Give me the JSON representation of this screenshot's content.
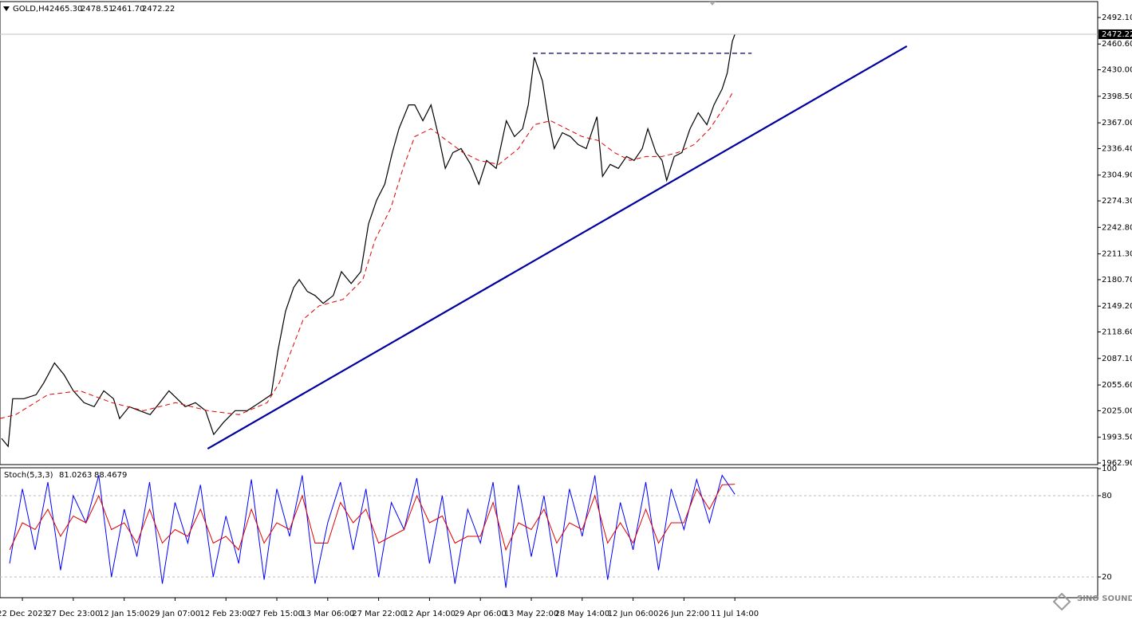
{
  "chart_data": [
    {
      "type": "line",
      "symbol": "GOLD,H4",
      "ohlc": [
        "2465.30",
        "2478.51",
        "2461.70",
        "2472.22"
      ],
      "xlim": [
        -0.44,
        21.13
      ],
      "ylim": [
        1961,
        2511
      ],
      "yticks": [
        {
          "value": 2492.1,
          "label": "2492.10"
        },
        {
          "value": 2460.6,
          "label": "2460.60"
        },
        {
          "value": 2430,
          "label": "2430.00"
        },
        {
          "value": 2398.5,
          "label": "2398.50"
        },
        {
          "value": 2367,
          "label": "2367.00"
        },
        {
          "value": 2336.4,
          "label": "2336.40"
        },
        {
          "value": 2304.9,
          "label": "2304.90"
        },
        {
          "value": 2274.3,
          "label": "2274.30"
        },
        {
          "value": 2242.8,
          "label": "2242.80"
        },
        {
          "value": 2211.3,
          "label": "2211.30"
        },
        {
          "value": 2180.7,
          "label": "2180.70"
        },
        {
          "value": 2149.2,
          "label": "2149.20"
        },
        {
          "value": 2118.6,
          "label": "2118.60"
        },
        {
          "value": 2087.1,
          "label": "2087.10"
        },
        {
          "value": 2055.6,
          "label": "2055.60"
        },
        {
          "value": 2025,
          "label": "2025.00"
        },
        {
          "value": 1993.5,
          "label": "1993.50"
        },
        {
          "value": 1962.9,
          "label": "1962.90"
        }
      ],
      "xticks": [
        {
          "value": 0,
          "label": "22 Dec 2023"
        },
        {
          "value": 1,
          "label": "27 Dec 23:00"
        },
        {
          "value": 2,
          "label": "12 Jan 15:00"
        },
        {
          "value": 3,
          "label": "29 Jan 07:00"
        },
        {
          "value": 4,
          "label": "12 Feb 23:00"
        },
        {
          "value": 5,
          "label": "27 Feb 15:00"
        },
        {
          "value": 6,
          "label": "13 Mar 06:00"
        },
        {
          "value": 7,
          "label": "27 Mar 22:00"
        },
        {
          "value": 8,
          "label": "12 Apr 14:00"
        },
        {
          "value": 9,
          "label": "29 Apr 06:00"
        },
        {
          "value": 10,
          "label": "13 May 22:00"
        },
        {
          "value": 11,
          "label": "28 May 14:00"
        },
        {
          "value": 12,
          "label": "12 Jun 06:00"
        },
        {
          "value": 13,
          "label": "26 Jun 22:00"
        },
        {
          "value": 14,
          "label": "11 Jul 14:00"
        }
      ],
      "series": [
        {
          "color": "#000000",
          "style": "solid",
          "x": [
            -0.41,
            -0.28,
            -0.19,
            0.03,
            0.27,
            0.42,
            0.63,
            0.82,
            1.0,
            1.21,
            1.41,
            1.6,
            1.79,
            1.91,
            2.1,
            2.3,
            2.51,
            2.7,
            2.88,
            3.04,
            3.2,
            3.4,
            3.6,
            3.76,
            3.95,
            4.18,
            4.42,
            4.66,
            4.89,
            5.02,
            5.17,
            5.33,
            5.44,
            5.6,
            5.75,
            5.91,
            6.11,
            6.27,
            6.46,
            6.65,
            6.8,
            6.96,
            7.12,
            7.27,
            7.4,
            7.59,
            7.71,
            7.87,
            8.03,
            8.18,
            8.31,
            8.46,
            8.62,
            8.81,
            8.97,
            9.12,
            9.31,
            9.51,
            9.67,
            9.83,
            9.94,
            10.06,
            10.22,
            10.34,
            10.45,
            10.61,
            10.77,
            10.92,
            11.08,
            11.29,
            11.4,
            11.55,
            11.71,
            11.87,
            12.02,
            12.18,
            12.29,
            12.45,
            12.57,
            12.66,
            12.81,
            12.96,
            13.12,
            13.28,
            13.45,
            13.59,
            13.75,
            13.85,
            13.95,
            14.0
          ],
          "values": [
            1992.1,
            1982.7,
            2039.3,
            2039.3,
            2044.0,
            2058.1,
            2081.7,
            2067.6,
            2048.7,
            2034.6,
            2029.8,
            2048.7,
            2039.3,
            2015.7,
            2029.8,
            2025.1,
            2020.4,
            2034.6,
            2048.7,
            2039.3,
            2029.8,
            2034.6,
            2025.1,
            1996.8,
            2011.0,
            2025.1,
            2025.1,
            2034.6,
            2044.0,
            2095.9,
            2143.0,
            2171.3,
            2180.8,
            2166.6,
            2161.9,
            2152.5,
            2161.9,
            2190.2,
            2176.1,
            2190.2,
            2246.8,
            2275.1,
            2294.0,
            2331.7,
            2360.0,
            2388.3,
            2388.3,
            2369.5,
            2388.3,
            2350.6,
            2312.9,
            2331.7,
            2336.4,
            2317.6,
            2294.0,
            2322.3,
            2312.9,
            2369.5,
            2350.6,
            2360.0,
            2388.3,
            2444.9,
            2416.6,
            2369.5,
            2336.4,
            2355.3,
            2350.6,
            2341.2,
            2336.4,
            2374.2,
            2303.4,
            2317.6,
            2312.9,
            2327.0,
            2322.3,
            2336.4,
            2360.0,
            2331.7,
            2322.3,
            2298.7,
            2327.0,
            2331.7,
            2360.0,
            2378.9,
            2364.7,
            2388.3,
            2407.2,
            2426.1,
            2463.8,
            2472.22
          ]
        },
        {
          "color": "#e00000",
          "style": "dashed",
          "x": [
            -0.44,
            -0.13,
            0.5,
            1.13,
            1.76,
            2.38,
            3.01,
            3.64,
            4.26,
            4.81,
            5.05,
            5.28,
            5.52,
            5.83,
            6.3,
            6.69,
            6.93,
            7.24,
            7.48,
            7.71,
            8.03,
            8.34,
            8.66,
            8.97,
            9.36,
            9.75,
            10.06,
            10.38,
            10.69,
            11.0,
            11.32,
            11.63,
            11.94,
            12.26,
            12.57,
            12.88,
            13.2,
            13.51,
            13.82,
            13.95
          ],
          "values": [
            2015.7,
            2020.4,
            2044.0,
            2048.7,
            2034.6,
            2025.1,
            2034.6,
            2025.1,
            2020.4,
            2034.6,
            2058.1,
            2095.9,
            2133.6,
            2149.6,
            2157.2,
            2180.8,
            2227.9,
            2265.7,
            2312.9,
            2350.6,
            2360.0,
            2345.9,
            2331.7,
            2322.3,
            2317.6,
            2336.4,
            2364.7,
            2369.5,
            2360.0,
            2350.6,
            2345.9,
            2331.7,
            2322.3,
            2327.0,
            2327.0,
            2331.7,
            2341.2,
            2360.0,
            2388.3,
            2402.5
          ]
        }
      ],
      "lines": [
        {
          "color": "#0000a0",
          "style": "solid",
          "x": [
            3.64,
            17.38
          ],
          "values": [
            1979.8,
            2458.1
          ]
        },
        {
          "color": "#000050",
          "style": "dashed",
          "x": [
            10.03,
            14.33
          ],
          "values": [
            2449.6,
            2449.6
          ]
        }
      ]
    },
    {
      "type": "line",
      "title": "Stoch(5,3,3)",
      "xlim": [
        -0.44,
        21.13
      ],
      "ylim": [
        4.7,
        100.6
      ],
      "yticks": [
        100,
        80,
        20
      ],
      "levels": [
        80,
        20
      ],
      "series": [
        {
          "color": "#0000ff",
          "style": "solid",
          "x": [
            -0.25,
            0,
            0.25,
            0.5,
            0.75,
            1,
            1.25,
            1.5,
            1.75,
            2,
            2.25,
            2.5,
            2.75,
            3,
            3.25,
            3.5,
            3.75,
            4,
            4.25,
            4.5,
            4.75,
            5,
            5.25,
            5.5,
            5.75,
            6,
            6.25,
            6.5,
            6.75,
            7,
            7.25,
            7.5,
            7.75,
            8,
            8.25,
            8.5,
            8.75,
            9,
            9.25,
            9.5,
            9.75,
            10,
            10.25,
            10.5,
            10.75,
            11,
            11.25,
            11.5,
            11.75,
            12,
            12.25,
            12.5,
            12.75,
            13,
            13.25,
            13.5,
            13.75,
            14
          ],
          "values": [
            30,
            85,
            40,
            90,
            25,
            80,
            60,
            95,
            20,
            70,
            35,
            90,
            15,
            75,
            45,
            88,
            20,
            65,
            30,
            92,
            18,
            85,
            50,
            95,
            15,
            60,
            90,
            40,
            85,
            20,
            75,
            55,
            93,
            30,
            80,
            15,
            70,
            45,
            90,
            12,
            88,
            35,
            80,
            20,
            85,
            50,
            95,
            18,
            75,
            40,
            90,
            25,
            85,
            55,
            92,
            60,
            95,
            81.0263
          ]
        },
        {
          "color": "#e00000",
          "style": "solid",
          "x": [
            -0.25,
            0,
            0.25,
            0.5,
            0.75,
            1,
            1.25,
            1.5,
            1.75,
            2,
            2.25,
            2.5,
            2.75,
            3,
            3.25,
            3.5,
            3.75,
            4,
            4.25,
            4.5,
            4.75,
            5,
            5.25,
            5.5,
            5.75,
            6,
            6.25,
            6.5,
            6.75,
            7,
            7.25,
            7.5,
            7.75,
            8,
            8.25,
            8.5,
            8.75,
            9,
            9.25,
            9.5,
            9.75,
            10,
            10.25,
            10.5,
            10.75,
            11,
            11.25,
            11.5,
            11.75,
            12,
            12.25,
            12.5,
            12.75,
            13,
            13.25,
            13.5,
            13.75,
            14
          ],
          "values": [
            40,
            60,
            55,
            70,
            50,
            65,
            60,
            80,
            55,
            60,
            45,
            70,
            45,
            55,
            50,
            70,
            45,
            50,
            40,
            70,
            45,
            60,
            55,
            80,
            45,
            45,
            75,
            60,
            70,
            45,
            50,
            55,
            80,
            60,
            65,
            45,
            50,
            50,
            75,
            40,
            60,
            55,
            70,
            45,
            60,
            55,
            80,
            45,
            60,
            45,
            70,
            45,
            60,
            60,
            85,
            70,
            88,
            88.4679
          ]
        }
      ]
    }
  ],
  "watermark": "SINO SOUND"
}
